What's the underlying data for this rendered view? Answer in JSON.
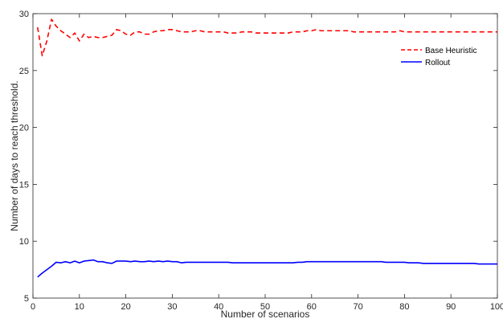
{
  "chart_data": {
    "type": "line",
    "title": "",
    "xlabel": "Number of scenarios",
    "ylabel": "Number of days to reach threshold.",
    "xlim": [
      0,
      100
    ],
    "ylim": [
      5,
      30
    ],
    "xticks": [
      0,
      10,
      20,
      30,
      40,
      50,
      60,
      70,
      80,
      90,
      100
    ],
    "yticks": [
      5,
      10,
      15,
      20,
      25,
      30
    ],
    "grid": false,
    "legend_position": "top-right",
    "series": [
      {
        "name": "Base Heuristic",
        "color": "#ff0000",
        "line_style": "dashed",
        "x": [
          1,
          2,
          3,
          4,
          5,
          6,
          7,
          8,
          9,
          10,
          11,
          12,
          13,
          14,
          15,
          16,
          17,
          18,
          19,
          20,
          21,
          22,
          23,
          24,
          25,
          26,
          27,
          28,
          29,
          30,
          31,
          32,
          33,
          34,
          35,
          36,
          37,
          38,
          39,
          40,
          41,
          42,
          43,
          44,
          45,
          46,
          47,
          48,
          49,
          50,
          51,
          52,
          53,
          54,
          55,
          56,
          57,
          58,
          59,
          60,
          61,
          62,
          63,
          64,
          65,
          66,
          67,
          68,
          69,
          70,
          71,
          72,
          73,
          74,
          75,
          76,
          77,
          78,
          79,
          80,
          81,
          82,
          83,
          84,
          85,
          86,
          87,
          88,
          89,
          90,
          91,
          92,
          93,
          94,
          95,
          96,
          97,
          98,
          99,
          100
        ],
        "y": [
          28.8,
          26.3,
          27.6,
          29.5,
          28.9,
          28.5,
          28.2,
          27.9,
          28.3,
          27.6,
          28.2,
          27.9,
          28.0,
          27.9,
          27.9,
          28.0,
          28.1,
          28.6,
          28.5,
          28.2,
          28.1,
          28.4,
          28.4,
          28.2,
          28.2,
          28.4,
          28.5,
          28.5,
          28.6,
          28.6,
          28.5,
          28.4,
          28.4,
          28.4,
          28.5,
          28.5,
          28.4,
          28.4,
          28.4,
          28.4,
          28.4,
          28.3,
          28.3,
          28.3,
          28.4,
          28.4,
          28.4,
          28.3,
          28.3,
          28.3,
          28.3,
          28.3,
          28.3,
          28.3,
          28.3,
          28.4,
          28.4,
          28.4,
          28.5,
          28.5,
          28.6,
          28.5,
          28.5,
          28.5,
          28.5,
          28.5,
          28.5,
          28.5,
          28.4,
          28.4,
          28.4,
          28.4,
          28.4,
          28.4,
          28.4,
          28.4,
          28.4,
          28.4,
          28.5,
          28.4,
          28.4,
          28.4,
          28.4,
          28.4,
          28.4,
          28.4,
          28.4,
          28.4,
          28.4,
          28.4,
          28.4,
          28.4,
          28.4,
          28.4,
          28.4,
          28.4,
          28.4,
          28.4,
          28.4,
          28.4
        ]
      },
      {
        "name": "Rollout",
        "color": "#0000ff",
        "line_style": "solid",
        "x": [
          1,
          2,
          3,
          4,
          5,
          6,
          7,
          8,
          9,
          10,
          11,
          12,
          13,
          14,
          15,
          16,
          17,
          18,
          19,
          20,
          21,
          22,
          23,
          24,
          25,
          26,
          27,
          28,
          29,
          30,
          31,
          32,
          33,
          34,
          35,
          36,
          37,
          38,
          39,
          40,
          41,
          42,
          43,
          44,
          45,
          46,
          47,
          48,
          49,
          50,
          51,
          52,
          53,
          54,
          55,
          56,
          57,
          58,
          59,
          60,
          61,
          62,
          63,
          64,
          65,
          66,
          67,
          68,
          69,
          70,
          71,
          72,
          73,
          74,
          75,
          76,
          77,
          78,
          79,
          80,
          81,
          82,
          83,
          84,
          85,
          86,
          87,
          88,
          89,
          90,
          91,
          92,
          93,
          94,
          95,
          96,
          97,
          98,
          99,
          100
        ],
        "y": [
          6.85,
          7.2,
          7.5,
          7.8,
          8.15,
          8.1,
          8.2,
          8.1,
          8.25,
          8.1,
          8.25,
          8.3,
          8.35,
          8.2,
          8.2,
          8.1,
          8.05,
          8.25,
          8.25,
          8.25,
          8.2,
          8.25,
          8.2,
          8.2,
          8.25,
          8.2,
          8.25,
          8.2,
          8.25,
          8.2,
          8.2,
          8.1,
          8.15,
          8.15,
          8.15,
          8.15,
          8.15,
          8.15,
          8.15,
          8.15,
          8.15,
          8.15,
          8.1,
          8.1,
          8.1,
          8.1,
          8.1,
          8.1,
          8.1,
          8.1,
          8.1,
          8.1,
          8.1,
          8.1,
          8.1,
          8.1,
          8.15,
          8.15,
          8.2,
          8.2,
          8.2,
          8.2,
          8.2,
          8.2,
          8.2,
          8.2,
          8.2,
          8.2,
          8.2,
          8.2,
          8.2,
          8.2,
          8.2,
          8.2,
          8.2,
          8.15,
          8.15,
          8.15,
          8.15,
          8.15,
          8.1,
          8.1,
          8.1,
          8.05,
          8.05,
          8.05,
          8.05,
          8.05,
          8.05,
          8.05,
          8.05,
          8.05,
          8.05,
          8.05,
          8.05,
          8.0,
          8.0,
          8.0,
          8.0,
          8.0
        ]
      }
    ]
  }
}
